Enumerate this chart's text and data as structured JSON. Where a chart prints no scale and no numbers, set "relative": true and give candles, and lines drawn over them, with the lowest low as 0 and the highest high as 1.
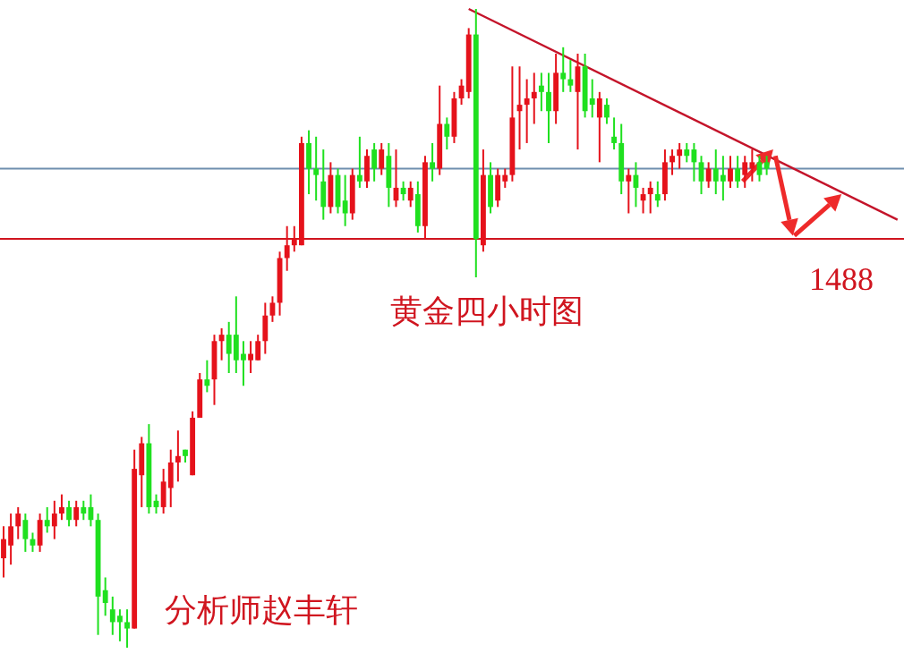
{
  "chart_data": {
    "type": "candlestick",
    "relative": true,
    "series": [
      {
        "type": "line",
        "color": "#c4142a",
        "values": [
          null,
          null,
          null,
          null,
          null,
          null,
          null,
          null,
          null,
          null,
          null,
          null,
          null,
          null,
          null,
          null,
          null,
          null,
          null,
          null,
          null,
          null,
          null,
          null,
          null,
          null,
          null,
          null,
          null,
          null,
          null,
          null,
          null,
          null,
          null,
          null,
          null,
          null,
          null,
          null,
          null,
          null,
          null,
          null,
          null,
          null,
          null,
          null,
          null,
          null,
          null,
          null,
          null,
          null,
          null,
          null,
          null,
          null,
          null,
          null,
          null,
          null,
          null,
          null,
          1.0,
          null,
          null,
          null,
          null,
          null,
          null,
          null,
          null,
          null,
          null,
          null,
          null,
          null,
          null,
          null,
          null,
          null,
          null,
          null,
          null,
          null,
          null,
          null,
          null,
          null,
          null,
          null,
          null,
          null,
          null,
          null,
          null,
          null,
          null,
          null,
          null,
          null,
          null,
          null,
          null,
          null,
          null,
          null,
          null,
          null,
          null,
          null,
          null,
          null,
          null,
          null,
          null,
          null,
          null,
          null,
          null,
          null,
          null,
          0.67
        ]
      }
    ],
    "colors": [
      "#e5121b",
      "#e5121b",
      "#e5121b",
      "#1fe01f",
      "#1fe01f",
      "#e5121b",
      "#1fe01f",
      "#e5121b",
      "#e5121b",
      "#1fe01f",
      "#e5121b",
      "#1fe01f",
      "#1fe01f",
      "#1fe01f",
      "#1fe01f",
      "#1fe01f",
      "#1fe01f",
      "#1fe01f",
      "#e5121b",
      "#e5121b",
      "#1fe01f",
      "#1fe01f",
      "#e5121b",
      "#e5121b",
      "#e5121b",
      "#1fe01f",
      "#e5121b",
      "#e5121b",
      "#1fe01f",
      "#e5121b",
      "#e5121b",
      "#1fe01f",
      "#1fe01f",
      "#1fe01f",
      "#e5121b",
      "#e5121b",
      "#e5121b",
      "#e5121b",
      "#e5121b",
      "#e5121b",
      "#e5121b",
      "#e5121b",
      "#1fe01f",
      "#1fe01f",
      "#1fe01f",
      "#e5121b",
      "#1fe01f",
      "#1fe01f",
      "#e5121b",
      "#1fe01f",
      "#e5121b",
      "#1fe01f",
      "#e5121b",
      "#1fe01f",
      "#e5121b",
      "#1fe01f",
      "#e5121b",
      "#1fe01f",
      "#e5121b",
      "#1fe01f",
      "#e5121b",
      "#1fe01f",
      "#e5121b",
      "#e5121b",
      "#e5121b",
      "#1fe01f",
      "#e5121b",
      "#1fe01f",
      "#e5121b",
      "#e5121b",
      "#e5121b",
      "#e5121b",
      "#e5121b",
      "#e5121b",
      "#1fe01f",
      "#1fe01f",
      "#e5121b",
      "#1fe01f",
      "#1fe01f",
      "#e5121b",
      "#1fe01f",
      "#1fe01f",
      "#e5121b",
      "#1fe01f",
      "#1fe01f",
      "#1fe01f",
      "#e5121b",
      "#1fe01f",
      "#e5121b",
      "#e5121b",
      "#1fe01f",
      "#e5121b",
      "#e5121b",
      "#e5121b",
      "#1fe01f",
      "#1fe01f",
      "#1fe01f",
      "#e5121b",
      "#1fe01f",
      "#1fe01f",
      "#e5121b",
      "#1fe01f",
      "#e5121b",
      "#e5121b",
      "#1fe01f",
      "#1fe01f",
      null,
      null,
      null,
      null,
      null,
      null,
      null,
      null,
      null,
      null,
      null,
      null,
      null,
      null,
      null,
      null,
      null,
      null
    ],
    "categories": [
      null,
      null,
      null,
      null,
      null,
      null,
      null,
      null,
      null,
      null,
      null,
      null,
      null,
      null,
      null,
      null,
      null,
      null,
      null,
      null,
      null,
      null,
      null,
      null,
      null,
      null,
      null,
      null,
      null,
      null,
      null,
      null,
      null,
      null,
      null,
      null,
      null,
      null,
      null,
      null,
      null,
      null,
      null,
      null,
      null,
      null,
      null,
      null,
      null,
      null,
      null,
      null,
      null,
      null,
      null,
      null,
      null,
      null,
      null,
      null,
      null,
      null,
      null,
      null,
      null,
      null,
      null,
      null,
      null,
      null,
      null,
      null,
      null,
      null,
      null,
      null,
      null,
      null,
      null,
      null,
      null,
      null,
      null,
      null,
      null,
      null,
      null,
      null,
      null,
      null,
      null,
      null,
      null,
      null,
      null,
      null,
      null,
      null,
      null,
      null,
      null,
      null,
      null,
      null,
      null,
      null,
      null,
      null,
      null,
      null,
      null,
      null,
      null,
      null,
      null,
      null,
      null,
      null,
      null,
      null,
      null,
      null,
      null,
      null
    ],
    "ohlc": [
      [
        0.14,
        0.19,
        0.11,
        0.17
      ],
      [
        0.16,
        0.21,
        0.13,
        0.19
      ],
      [
        0.19,
        0.22,
        0.17,
        0.21
      ],
      [
        0.2,
        0.21,
        0.15,
        0.17
      ],
      [
        0.17,
        0.18,
        0.15,
        0.16
      ],
      [
        0.16,
        0.21,
        0.15,
        0.2
      ],
      [
        0.2,
        0.22,
        0.18,
        0.19
      ],
      [
        0.19,
        0.23,
        0.17,
        0.21
      ],
      [
        0.21,
        0.24,
        0.2,
        0.22
      ],
      [
        0.22,
        0.23,
        0.19,
        0.2
      ],
      [
        0.2,
        0.23,
        0.19,
        0.22
      ],
      [
        0.22,
        0.23,
        0.2,
        0.21
      ],
      [
        0.22,
        0.24,
        0.19,
        0.2
      ],
      [
        0.2,
        0.21,
        0.02,
        0.08
      ],
      [
        0.09,
        0.11,
        0.05,
        0.07
      ],
      [
        0.06,
        0.08,
        0.02,
        0.04
      ],
      [
        0.05,
        0.06,
        0.01,
        0.04
      ],
      [
        0.04,
        0.06,
        0,
        0.03
      ],
      [
        0.03,
        0.31,
        0.03,
        0.28
      ],
      [
        0.27,
        0.33,
        0.22,
        0.32
      ],
      [
        0.32,
        0.35,
        0.21,
        0.22
      ],
      [
        0.23,
        0.24,
        0.21,
        0.22
      ],
      [
        0.22,
        0.28,
        0.21,
        0.26
      ],
      [
        0.25,
        0.31,
        0.22,
        0.29
      ],
      [
        0.29,
        0.34,
        0.26,
        0.3
      ],
      [
        0.31,
        0.31,
        0.29,
        0.3
      ],
      [
        0.27,
        0.37,
        0.27,
        0.36
      ],
      [
        0.36,
        0.43,
        0.36,
        0.42
      ],
      [
        0.42,
        0.45,
        0.4,
        0.41
      ],
      [
        0.42,
        0.49,
        0.38,
        0.48
      ],
      [
        0.48,
        0.5,
        0.45,
        0.49
      ],
      [
        0.49,
        0.51,
        0.43,
        0.46
      ],
      [
        0.49,
        0.55,
        0.43,
        0.45
      ],
      [
        0.46,
        0.48,
        0.41,
        0.45
      ],
      [
        0.45,
        0.48,
        0.43,
        0.46
      ],
      [
        0.45,
        0.49,
        0.45,
        0.48
      ],
      [
        0.48,
        0.54,
        0.46,
        0.52
      ],
      [
        0.52,
        0.55,
        0.51,
        0.54
      ],
      [
        0.54,
        0.62,
        0.52,
        0.61
      ],
      [
        0.61,
        0.66,
        0.59,
        0.63
      ],
      [
        0.63,
        0.66,
        0.62,
        0.64
      ],
      [
        0.63,
        0.8,
        0.63,
        0.79
      ],
      [
        0.79,
        0.81,
        0.71,
        0.75
      ],
      [
        0.75,
        0.8,
        0.7,
        0.74
      ],
      [
        0.73,
        0.78,
        0.67,
        0.69
      ],
      [
        0.69,
        0.76,
        0.68,
        0.74
      ],
      [
        0.74,
        0.75,
        0.68,
        0.69
      ],
      [
        0.7,
        0.74,
        0.66,
        0.68
      ],
      [
        0.68,
        0.75,
        0.67,
        0.74
      ],
      [
        0.74,
        0.8,
        0.72,
        0.73
      ],
      [
        0.73,
        0.78,
        0.72,
        0.77
      ],
      [
        0.78,
        0.79,
        0.73,
        0.75
      ],
      [
        0.75,
        0.79,
        0.74,
        0.78
      ],
      [
        0.77,
        0.79,
        0.69,
        0.72
      ],
      [
        0.7,
        0.78,
        0.69,
        0.72
      ],
      [
        0.72,
        0.73,
        0.7,
        0.71
      ],
      [
        0.7,
        0.73,
        0.69,
        0.72
      ],
      [
        0.71,
        0.73,
        0.65,
        0.66
      ],
      [
        0.66,
        0.77,
        0.64,
        0.76
      ],
      [
        0.76,
        0.79,
        0.73,
        0.75
      ],
      [
        0.75,
        0.88,
        0.74,
        0.82
      ],
      [
        0.82,
        0.83,
        0.78,
        0.8
      ],
      [
        0.8,
        0.87,
        0.79,
        0.86
      ],
      [
        0.86,
        0.89,
        0.85,
        0.88
      ],
      [
        0.87,
        0.97,
        0.86,
        0.96
      ],
      [
        0.96,
        1.0,
        0.58,
        0.64
      ],
      [
        0.63,
        0.78,
        0.62,
        0.74
      ],
      [
        0.74,
        0.76,
        0.68,
        0.69
      ],
      [
        0.7,
        0.75,
        0.69,
        0.74
      ],
      [
        0.73,
        0.75,
        0.72,
        0.74
      ],
      [
        0.74,
        0.91,
        0.73,
        0.83
      ],
      [
        0.84,
        0.91,
        0.78,
        0.85
      ],
      [
        0.85,
        0.89,
        0.79,
        0.86
      ],
      [
        0.86,
        0.9,
        0.82,
        0.87
      ],
      [
        0.88,
        0.9,
        0.84,
        0.87
      ],
      [
        0.87,
        0.9,
        0.79,
        0.84
      ],
      [
        0.84,
        0.93,
        0.82,
        0.9
      ],
      [
        0.9,
        0.94,
        0.87,
        0.89
      ],
      [
        0.89,
        0.92,
        0.87,
        0.88
      ],
      [
        0.87,
        0.93,
        0.78,
        0.91
      ],
      [
        0.91,
        0.93,
        0.83,
        0.84
      ],
      [
        0.86,
        0.89,
        0.83,
        0.85
      ],
      [
        0.83,
        0.87,
        0.76,
        0.86
      ],
      [
        0.85,
        0.86,
        0.82,
        0.83
      ],
      [
        0.8,
        0.83,
        0.78,
        0.79
      ],
      [
        0.79,
        0.82,
        0.71,
        0.73
      ],
      [
        0.73,
        0.75,
        0.68,
        0.74
      ],
      [
        0.74,
        0.76,
        0.69,
        0.72
      ],
      [
        0.7,
        0.72,
        0.68,
        0.71
      ],
      [
        0.71,
        0.73,
        0.68,
        0.72
      ],
      [
        0.71,
        0.73,
        0.69,
        0.7
      ],
      [
        0.71,
        0.78,
        0.7,
        0.76
      ],
      [
        0.76,
        0.78,
        0.74,
        0.77
      ],
      [
        0.77,
        0.79,
        0.75,
        0.78
      ],
      [
        0.78,
        0.79,
        0.76,
        0.77
      ],
      [
        0.78,
        0.79,
        0.73,
        0.76
      ],
      [
        0.76,
        0.77,
        0.71,
        0.73
      ],
      [
        0.73,
        0.76,
        0.72,
        0.75
      ],
      [
        0.75,
        0.78,
        0.71,
        0.73
      ],
      [
        0.74,
        0.77,
        0.7,
        0.73
      ],
      [
        0.73,
        0.77,
        0.72,
        0.75
      ],
      [
        0.75,
        0.77,
        0.72,
        0.73
      ],
      [
        0.74,
        0.77,
        0.72,
        0.76
      ],
      [
        0.75,
        0.78,
        0.73,
        0.76
      ],
      [
        0.76,
        0.77,
        0.73,
        0.74
      ],
      [
        0.76,
        0.77,
        0.74,
        0.75
      ],
      null,
      null,
      null,
      null,
      null,
      null,
      null,
      null,
      null,
      null,
      null,
      null,
      null,
      null,
      null,
      null,
      null,
      null
    ],
    "ref_lines": [
      {
        "axis": "y",
        "value": 0.64,
        "color": "#d0151f"
      },
      {
        "axis": "y",
        "value": 0.75,
        "color": "#6f8fae"
      }
    ],
    "annotations": [
      "黄金四小时图",
      "分析师赵丰轩",
      "1488"
    ]
  }
}
